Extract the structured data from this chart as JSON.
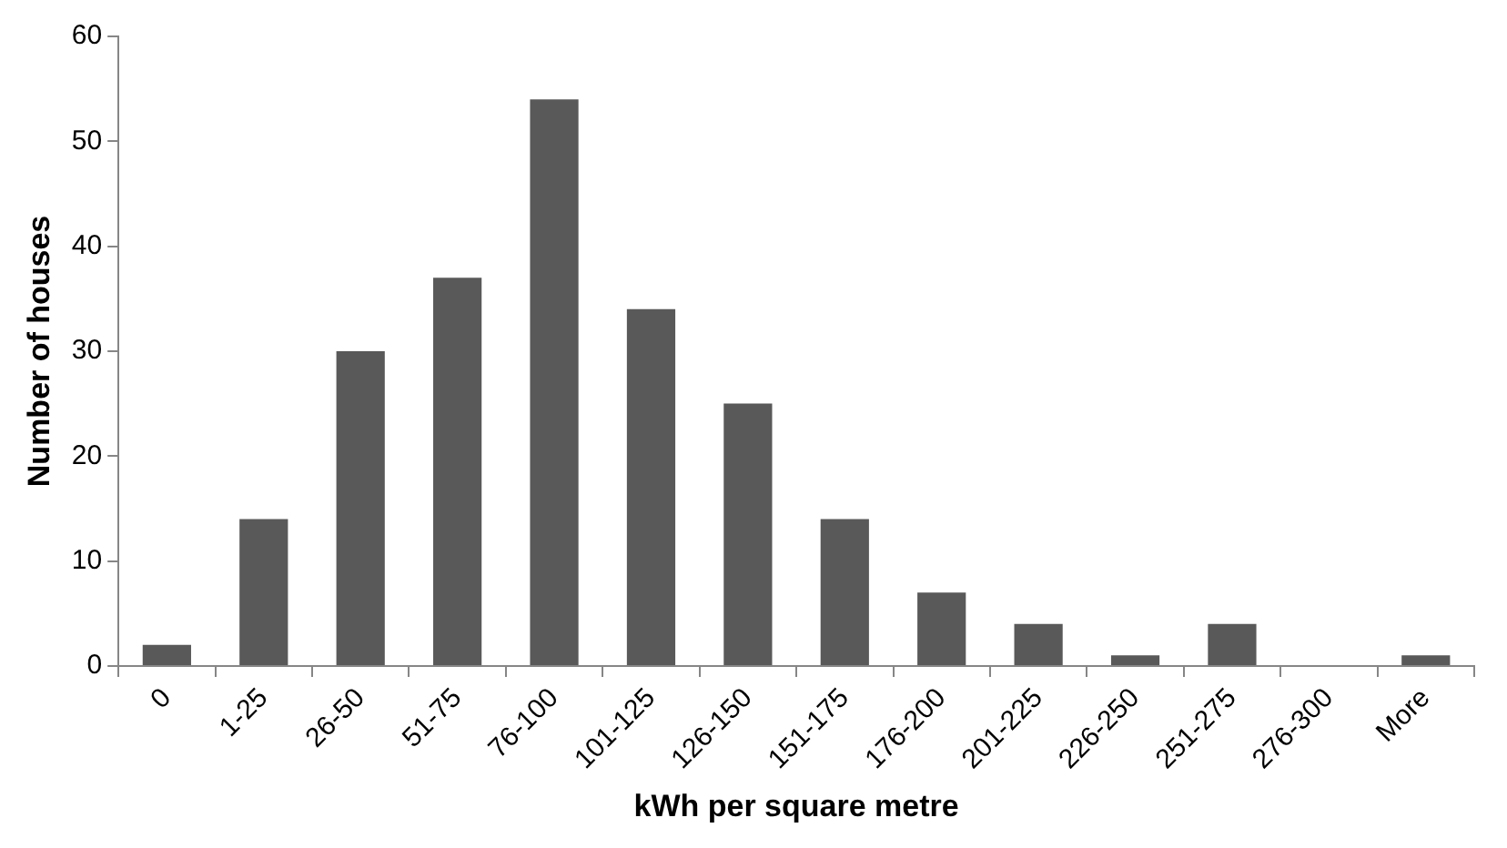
{
  "chart_data": {
    "type": "bar",
    "xlabel": "kWh per square metre",
    "ylabel": "Number of houses",
    "categories": [
      "0",
      "1-25",
      "26-50",
      "51-75",
      "76-100",
      "101-125",
      "126-150",
      "151-175",
      "176-200",
      "201-225",
      "226-250",
      "251-275",
      "276-300",
      "More"
    ],
    "values": [
      2,
      14,
      30,
      37,
      54,
      34,
      25,
      14,
      7,
      4,
      1,
      4,
      0,
      1
    ],
    "color": "#595959",
    "ylim": [
      0,
      60
    ],
    "yticks": [
      0,
      10,
      20,
      30,
      40,
      50,
      60
    ],
    "grid": false,
    "legend": false
  }
}
